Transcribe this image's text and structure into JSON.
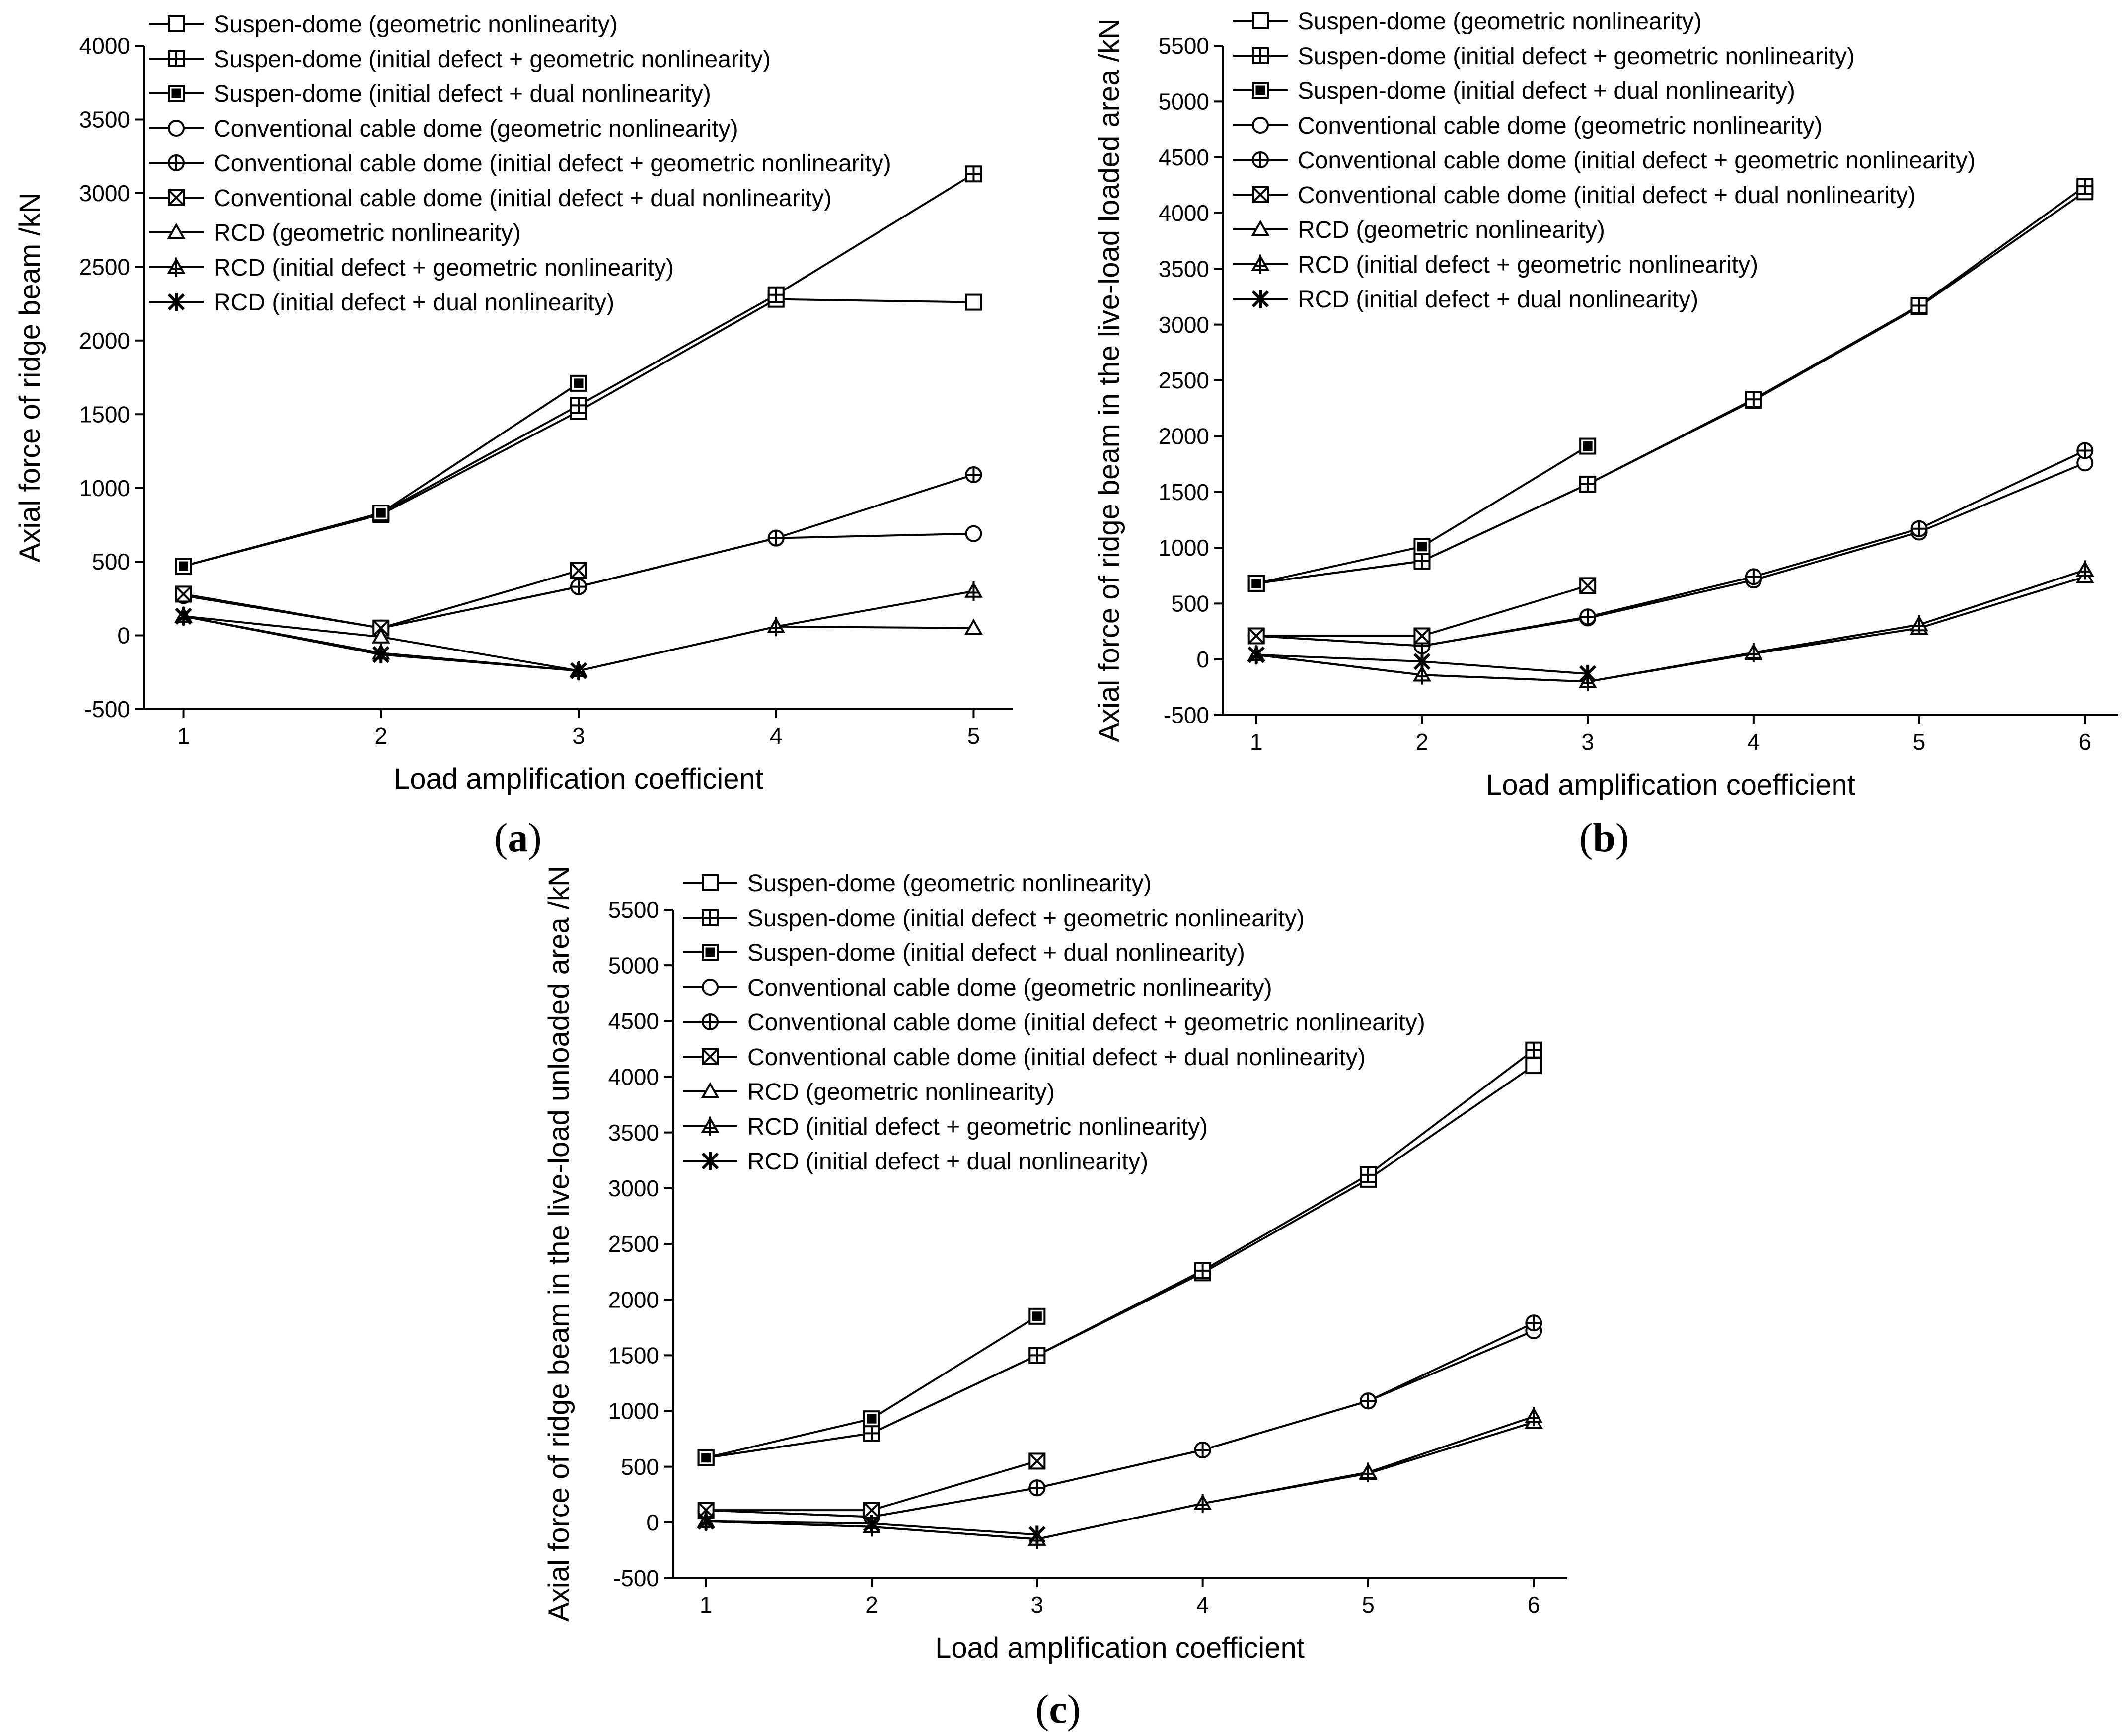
{
  "figure": {
    "panel_labels": [
      "a",
      "b",
      "c"
    ],
    "legend_entries": [
      "Suspen-dome (geometric nonlinearity)",
      "Suspen-dome (initial defect + geometric nonlinearity)",
      "Suspen-dome (initial defect + dual nonlinearity)",
      "Conventional cable dome (geometric nonlinearity)",
      "Conventional cable dome (initial defect + geometric nonlinearity)",
      "Conventional cable dome (initial defect + dual nonlinearity)",
      "RCD (geometric nonlinearity)",
      "RCD (initial defect + geometric nonlinearity)",
      "RCD (initial defect + dual nonlinearity)"
    ]
  },
  "chart_data": [
    {
      "type": "line",
      "panel": "a",
      "xlabel": "Load amplification coefficient",
      "ylabel": "Axial force of ridge beam /kN",
      "xlim": [
        0.8,
        5.2
      ],
      "ylim": [
        -500,
        4000
      ],
      "xticks": [
        "1",
        "2",
        "3",
        "4",
        "5"
      ],
      "yticks": [
        "-500",
        "0",
        "500",
        "1000",
        "1500",
        "2000",
        "2500",
        "3000",
        "3500",
        "4000"
      ],
      "legend_position": "top-left",
      "series": [
        {
          "name": "Suspen-dome (geometric nonlinearity)",
          "marker": "square-open",
          "x": [
            1,
            2,
            3,
            4,
            5
          ],
          "values": [
            470,
            820,
            1520,
            2280,
            2260
          ]
        },
        {
          "name": "Suspen-dome (initial defect + geometric nonlinearity)",
          "marker": "square-plus",
          "x": [
            1,
            2,
            3,
            4,
            5
          ],
          "values": [
            470,
            830,
            1560,
            2310,
            3130
          ]
        },
        {
          "name": "Suspen-dome (initial defect + dual nonlinearity)",
          "marker": "square-dot",
          "x": [
            1,
            2,
            3
          ],
          "values": [
            470,
            830,
            1710
          ]
        },
        {
          "name": "Conventional cable dome (geometric nonlinearity)",
          "marker": "circle-open",
          "x": [
            1,
            2,
            3,
            4,
            5
          ],
          "values": [
            270,
            50,
            330,
            660,
            690
          ]
        },
        {
          "name": "Conventional cable dome (initial defect + geometric nonlinearity)",
          "marker": "circle-plus",
          "x": [
            1,
            2,
            3,
            4,
            5
          ],
          "values": [
            270,
            50,
            330,
            660,
            1090
          ]
        },
        {
          "name": "Conventional cable dome (initial defect + dual nonlinearity)",
          "marker": "square-x",
          "x": [
            1,
            2,
            3
          ],
          "values": [
            280,
            50,
            440
          ]
        },
        {
          "name": "RCD (geometric nonlinearity)",
          "marker": "triangle-open",
          "x": [
            1,
            2,
            3,
            4,
            5
          ],
          "values": [
            130,
            -10,
            -240,
            60,
            50
          ]
        },
        {
          "name": "RCD (initial defect + geometric nonlinearity)",
          "marker": "triangle-plus",
          "x": [
            1,
            2,
            3,
            4,
            5
          ],
          "values": [
            130,
            -120,
            -240,
            60,
            300
          ]
        },
        {
          "name": "RCD (initial defect + dual nonlinearity)",
          "marker": "asterisk",
          "x": [
            1,
            2,
            3
          ],
          "values": [
            130,
            -130,
            -240
          ]
        }
      ]
    },
    {
      "type": "line",
      "panel": "b",
      "xlabel": "Load amplification coefficient",
      "ylabel": "Axial force of ridge beam in the live-load loaded area /kN",
      "xlim": [
        0.8,
        6.2
      ],
      "ylim": [
        -500,
        5500
      ],
      "xticks": [
        "1",
        "2",
        "3",
        "4",
        "5",
        "6"
      ],
      "yticks": [
        "-500",
        "0",
        "500",
        "1000",
        "1500",
        "2000",
        "2500",
        "3000",
        "3500",
        "4000",
        "4500",
        "5000",
        "5500"
      ],
      "legend_position": "top-left",
      "series": [
        {
          "name": "Suspen-dome (geometric nonlinearity)",
          "marker": "square-open",
          "x": [
            1,
            2,
            3,
            4,
            5,
            6
          ],
          "values": [
            680,
            880,
            1570,
            2320,
            3160,
            4190
          ]
        },
        {
          "name": "Suspen-dome (initial defect + geometric nonlinearity)",
          "marker": "square-plus",
          "x": [
            1,
            2,
            3,
            4,
            5,
            6
          ],
          "values": [
            680,
            880,
            1570,
            2330,
            3170,
            4240
          ]
        },
        {
          "name": "Suspen-dome (initial defect + dual nonlinearity)",
          "marker": "square-dot",
          "x": [
            1,
            2,
            3
          ],
          "values": [
            680,
            1010,
            1910
          ]
        },
        {
          "name": "Conventional cable dome (geometric nonlinearity)",
          "marker": "circle-open",
          "x": [
            1,
            2,
            3,
            4,
            5,
            6
          ],
          "values": [
            210,
            120,
            370,
            710,
            1140,
            1760
          ]
        },
        {
          "name": "Conventional cable dome (initial defect + geometric nonlinearity)",
          "marker": "circle-plus",
          "x": [
            1,
            2,
            3,
            4,
            5,
            6
          ],
          "values": [
            210,
            120,
            380,
            740,
            1170,
            1870
          ]
        },
        {
          "name": "Conventional cable dome (initial defect + dual nonlinearity)",
          "marker": "square-x",
          "x": [
            1,
            2,
            3
          ],
          "values": [
            210,
            210,
            660
          ]
        },
        {
          "name": "RCD (geometric nonlinearity)",
          "marker": "triangle-open",
          "x": [
            1,
            2,
            3,
            4,
            5,
            6
          ],
          "values": [
            40,
            -140,
            -200,
            50,
            280,
            740
          ]
        },
        {
          "name": "RCD (initial defect + geometric nonlinearity)",
          "marker": "triangle-plus",
          "x": [
            1,
            2,
            3,
            4,
            5,
            6
          ],
          "values": [
            40,
            -140,
            -200,
            60,
            310,
            800
          ]
        },
        {
          "name": "RCD (initial defect + dual nonlinearity)",
          "marker": "asterisk",
          "x": [
            1,
            2,
            3
          ],
          "values": [
            40,
            -20,
            -130
          ]
        }
      ]
    },
    {
      "type": "line",
      "panel": "c",
      "xlabel": "Load amplification coefficient",
      "ylabel": "Axial force of ridge beam in the live-load unloaded area /kN",
      "xlim": [
        0.8,
        6.2
      ],
      "ylim": [
        -500,
        5500
      ],
      "xticks": [
        "1",
        "2",
        "3",
        "4",
        "5",
        "6"
      ],
      "yticks": [
        "-500",
        "0",
        "500",
        "1000",
        "1500",
        "2000",
        "2500",
        "3000",
        "3500",
        "4000",
        "4500",
        "5000",
        "5500"
      ],
      "legend_position": "top-left",
      "series": [
        {
          "name": "Suspen-dome (geometric nonlinearity)",
          "marker": "square-open",
          "x": [
            1,
            2,
            3,
            4,
            5,
            6
          ],
          "values": [
            580,
            800,
            1500,
            2240,
            3080,
            4100
          ]
        },
        {
          "name": "Suspen-dome (initial defect + geometric nonlinearity)",
          "marker": "square-plus",
          "x": [
            1,
            2,
            3,
            4,
            5,
            6
          ],
          "values": [
            580,
            800,
            1500,
            2260,
            3120,
            4240
          ]
        },
        {
          "name": "Suspen-dome (initial defect + dual nonlinearity)",
          "marker": "square-dot",
          "x": [
            1,
            2,
            3
          ],
          "values": [
            580,
            930,
            1850
          ]
        },
        {
          "name": "Conventional cable dome (geometric nonlinearity)",
          "marker": "circle-open",
          "x": [
            1,
            2,
            3,
            4,
            5,
            6
          ],
          "values": [
            110,
            50,
            310,
            650,
            1090,
            1720
          ]
        },
        {
          "name": "Conventional cable dome (initial defect + geometric nonlinearity)",
          "marker": "circle-plus",
          "x": [
            1,
            2,
            3,
            4,
            5,
            6
          ],
          "values": [
            110,
            50,
            310,
            650,
            1090,
            1790
          ]
        },
        {
          "name": "Conventional cable dome (initial defect + dual nonlinearity)",
          "marker": "square-x",
          "x": [
            1,
            2,
            3
          ],
          "values": [
            110,
            110,
            550
          ]
        },
        {
          "name": "RCD (geometric nonlinearity)",
          "marker": "triangle-open",
          "x": [
            1,
            2,
            3,
            4,
            5,
            6
          ],
          "values": [
            10,
            -40,
            -150,
            170,
            440,
            900
          ]
        },
        {
          "name": "RCD (initial defect + geometric nonlinearity)",
          "marker": "triangle-plus",
          "x": [
            1,
            2,
            3,
            4,
            5,
            6
          ],
          "values": [
            10,
            -40,
            -150,
            170,
            450,
            950
          ]
        },
        {
          "name": "RCD (initial defect + dual nonlinearity)",
          "marker": "asterisk",
          "x": [
            1,
            2,
            3
          ],
          "values": [
            10,
            -10,
            -110
          ]
        }
      ]
    }
  ]
}
